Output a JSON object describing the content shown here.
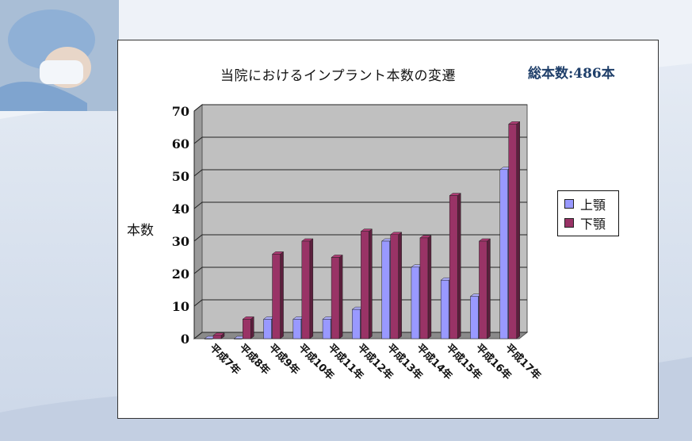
{
  "slide": {
    "title": "当院におけるインプラント本数の変遷",
    "total": "総本数:486本"
  },
  "colors": {
    "upper": "#9999ff",
    "lower": "#993366",
    "plot_bg": "#c0c0c0"
  },
  "chart_data": {
    "type": "bar",
    "title": "当院におけるインプラント本数の変遷",
    "xlabel": "",
    "ylabel": "本数",
    "ylim": [
      0,
      70
    ],
    "yticks": [
      "0",
      "10",
      "20",
      "30",
      "40",
      "50",
      "60",
      "70"
    ],
    "categories": [
      "平成7年",
      "平成8年",
      "平成9年",
      "平成10年",
      "平成11年",
      "平成12年",
      "平成13年",
      "平成14年",
      "平成15年",
      "平成16年",
      "平成17年"
    ],
    "series": [
      {
        "name": "上顎",
        "values": [
          0,
          0,
          6,
          6,
          6,
          9,
          30,
          22,
          18,
          13,
          52
        ]
      },
      {
        "name": "下顎",
        "values": [
          1,
          6,
          26,
          30,
          25,
          33,
          32,
          31,
          44,
          30,
          66
        ]
      }
    ],
    "grid": true,
    "legend_position": "right"
  }
}
